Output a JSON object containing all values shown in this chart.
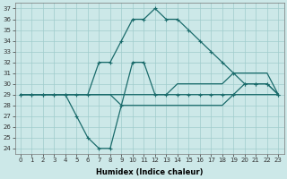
{
  "xlabel": "Humidex (Indice chaleur)",
  "xlim": [
    -0.5,
    23.5
  ],
  "ylim": [
    23.5,
    37.5
  ],
  "xticks": [
    0,
    1,
    2,
    3,
    4,
    5,
    6,
    7,
    8,
    9,
    10,
    11,
    12,
    13,
    14,
    15,
    16,
    17,
    18,
    19,
    20,
    21,
    22,
    23
  ],
  "yticks": [
    24,
    25,
    26,
    27,
    28,
    29,
    30,
    31,
    32,
    33,
    34,
    35,
    36,
    37
  ],
  "bg_color": "#cce8e8",
  "grid_color": "#a0cccc",
  "line_color": "#1a6b6b",
  "line1_x": [
    0,
    1,
    2,
    3,
    4,
    5,
    6,
    7,
    8,
    9,
    10,
    11,
    12,
    13,
    14,
    15,
    16,
    17,
    18,
    19,
    20,
    21,
    22,
    23
  ],
  "line1_y": [
    29,
    29,
    29,
    29,
    29,
    29,
    29,
    32,
    32,
    34,
    36,
    36,
    37,
    36,
    36,
    35,
    34,
    33,
    32,
    31,
    30,
    30,
    30,
    29
  ],
  "line2_x": [
    0,
    1,
    2,
    3,
    4,
    5,
    6,
    7,
    8,
    9,
    10,
    11,
    12,
    13,
    14,
    15,
    16,
    17,
    18,
    19,
    20,
    21,
    22,
    23
  ],
  "line2_y": [
    29,
    29,
    29,
    29,
    29,
    27,
    25,
    24,
    24,
    28,
    32,
    32,
    29,
    29,
    29,
    29,
    29,
    29,
    29,
    29,
    30,
    30,
    30,
    29
  ],
  "line3_x": [
    0,
    1,
    2,
    3,
    4,
    5,
    6,
    7,
    8,
    9,
    10,
    11,
    12,
    13,
    14,
    15,
    16,
    17,
    18,
    19,
    20,
    21,
    22,
    23
  ],
  "line3_y": [
    29,
    29,
    29,
    29,
    29,
    29,
    29,
    29,
    29,
    29,
    29,
    29,
    29,
    29,
    30,
    30,
    30,
    30,
    30,
    31,
    31,
    31,
    31,
    29
  ],
  "line4_x": [
    0,
    1,
    2,
    3,
    4,
    5,
    6,
    7,
    8,
    9,
    10,
    11,
    12,
    13,
    14,
    15,
    16,
    17,
    18,
    19,
    20,
    21,
    22,
    23
  ],
  "line4_y": [
    29,
    29,
    29,
    29,
    29,
    29,
    29,
    29,
    29,
    28,
    28,
    28,
    28,
    28,
    28,
    28,
    28,
    28,
    28,
    29,
    29,
    29,
    29,
    29
  ]
}
